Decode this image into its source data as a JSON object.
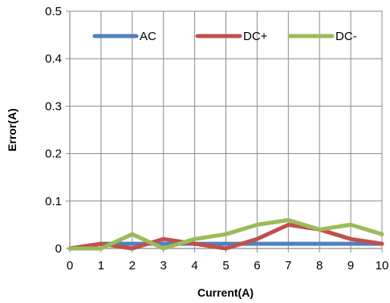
{
  "chart_data": {
    "type": "line",
    "title": "",
    "xlabel": "Current(A)",
    "ylabel": "Error(A)",
    "x": [
      0,
      1,
      2,
      3,
      4,
      5,
      6,
      7,
      8,
      9,
      10
    ],
    "x_ticks": [
      "0",
      "1",
      "2",
      "3",
      "4",
      "5",
      "6",
      "7",
      "8",
      "9",
      "10"
    ],
    "y_ticks": [
      "0",
      "0.1",
      "0.2",
      "0.3",
      "0.4",
      "0.5"
    ],
    "xlim": [
      0,
      10
    ],
    "ylim": [
      0,
      0.5
    ],
    "grid": true,
    "legend_position": "top",
    "series": [
      {
        "name": "AC",
        "color": "#4f81bd",
        "values": [
          0,
          0.01,
          0.01,
          0.01,
          0.01,
          0.01,
          0.01,
          0.01,
          0.01,
          0.01,
          0.01
        ]
      },
      {
        "name": "DC+",
        "color": "#c0504d",
        "values": [
          0,
          0.01,
          0,
          0.02,
          0.01,
          0,
          0.02,
          0.05,
          0.04,
          0.02,
          0.01
        ]
      },
      {
        "name": "DC-",
        "color": "#9bbb59",
        "values": [
          0,
          0,
          0.03,
          0,
          0.02,
          0.03,
          0.05,
          0.06,
          0.04,
          0.05,
          0.03
        ]
      }
    ]
  }
}
